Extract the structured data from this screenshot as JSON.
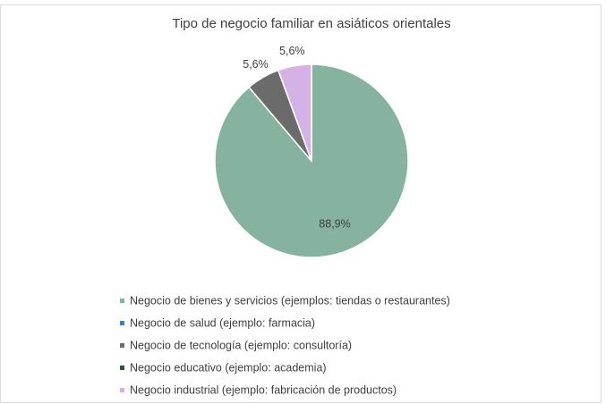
{
  "chart_data": {
    "type": "pie",
    "title": "Tipo de negocio familiar en asiáticos orientales",
    "categories": [
      "Negocio de bienes y servicios (ejemplos: tiendas o restaurantes)",
      "Negocio de salud (ejemplo: farmacia)",
      "Negocio de tecnología (ejemplo: consultoría)",
      "Negocio educativo (ejemplo: academia)",
      "Negocio industrial (ejemplo: fabricación de productos)"
    ],
    "values": [
      88.9,
      0,
      5.6,
      0,
      5.6
    ],
    "value_labels": [
      "88,9%",
      null,
      "5,6%",
      null,
      "5,6%"
    ],
    "colors": [
      "#86b3a0",
      "#3d7fc0",
      "#6b6b6b",
      "#2e5a2e",
      "#d5b2e6"
    ],
    "legend": "bottom"
  }
}
